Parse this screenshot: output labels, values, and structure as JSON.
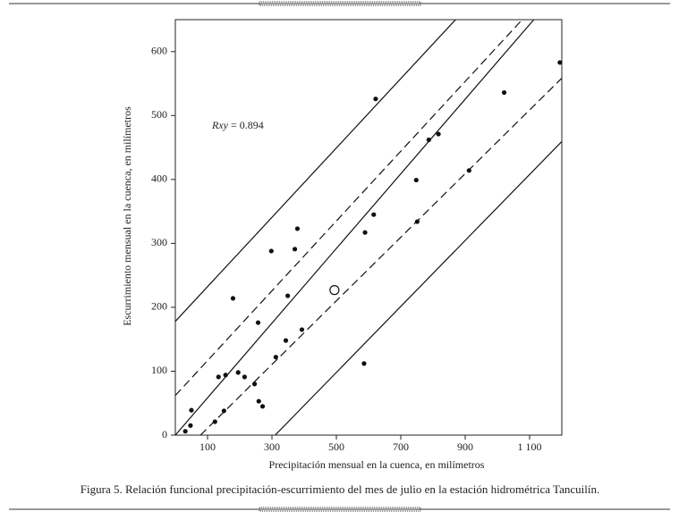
{
  "chart_data": {
    "type": "scatter",
    "xlabel": "Precipitación mensual en la cuenca, en milímetros",
    "ylabel": "Escurrimiento mensual en la cuenca, en milímetros",
    "caption": "Figura 5. Relación funcional precipitación-escurrimiento del mes de julio en la estación hidrométrica Tancuilín.",
    "annotation": {
      "symbol": "Rxy",
      "text": "= 0.894"
    },
    "xlim": [
      0,
      1200
    ],
    "ylim": [
      0,
      650
    ],
    "xticks": [
      100,
      300,
      500,
      700,
      900,
      {
        "value": 1100,
        "label": "1 100"
      }
    ],
    "yticks": [
      0,
      100,
      200,
      300,
      400,
      500,
      600
    ],
    "color": "#111",
    "x": [
      31,
      47,
      50,
      123,
      134,
      156,
      151,
      195,
      215,
      246,
      259,
      271,
      179,
      257,
      298,
      312,
      343,
      349,
      371,
      379,
      393,
      589,
      586,
      616,
      622,
      748,
      751,
      787,
      817,
      912,
      1021,
      1194
    ],
    "values": [
      6,
      15,
      39,
      21,
      91,
      94,
      38,
      98,
      91,
      80,
      53,
      45,
      214,
      176,
      288,
      122,
      148,
      218,
      291,
      323,
      165,
      317,
      112,
      345,
      526,
      399,
      334,
      462,
      471,
      414,
      536,
      583
    ],
    "mean_point": {
      "x": 494,
      "y": 227
    },
    "lines": [
      {
        "style": "solid",
        "x": [
          0,
          1113
        ],
        "y": [
          0,
          650
        ]
      },
      {
        "style": "solid",
        "x": [
          0,
          870
        ],
        "y": [
          178,
          650
        ]
      },
      {
        "style": "solid",
        "x": [
          310,
          1205
        ],
        "y": [
          0,
          462
        ]
      },
      {
        "style": "dashed",
        "x": [
          0,
          1077
        ],
        "y": [
          62,
          650
        ]
      },
      {
        "style": "dashed",
        "x": [
          78,
          1205
        ],
        "y": [
          0,
          561
        ]
      }
    ]
  }
}
